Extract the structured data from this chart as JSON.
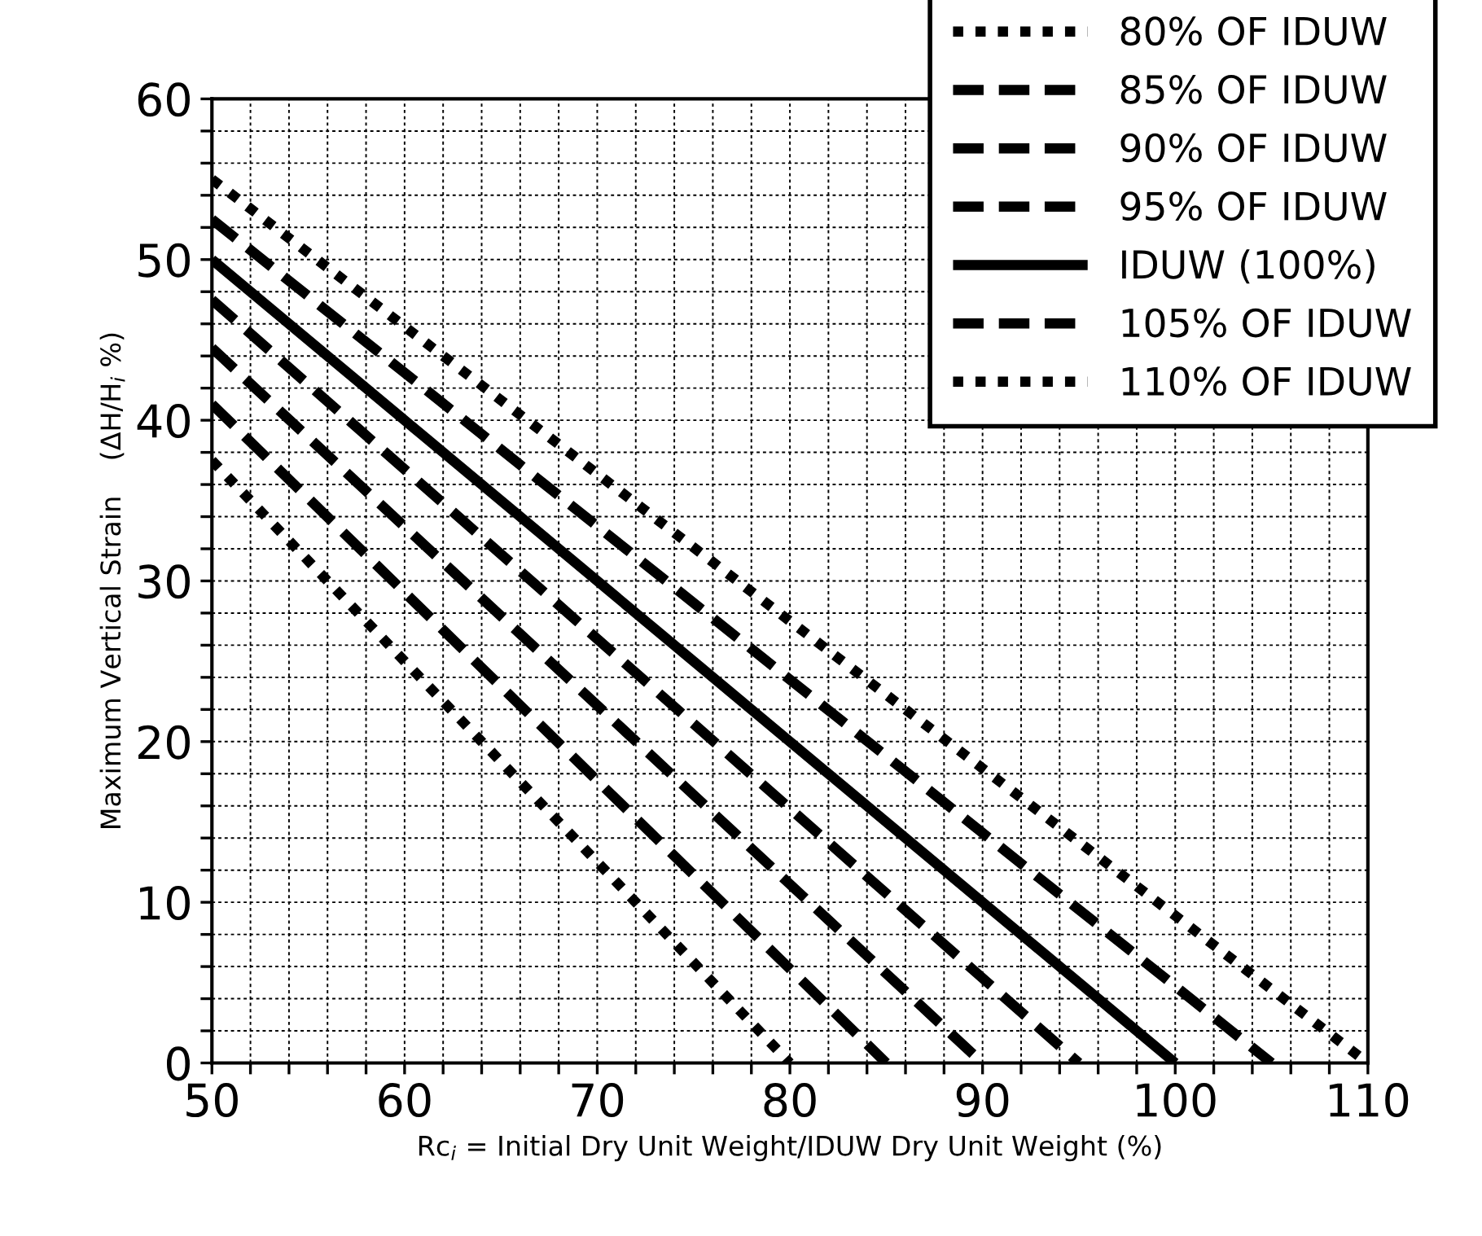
{
  "chart_data": {
    "type": "line",
    "xlabel": "Rc$_{i}$ = Initial Dry Unit Weight/IDUW Dry Unit Weight (%)",
    "ylabel": "Maximum Vertical Strain    (ΔH/H$_{i}$ %)",
    "xlim": [
      50,
      110
    ],
    "ylim": [
      0,
      60
    ],
    "xticks": [
      50,
      {
        "value": 52,
        "label": null
      },
      {
        "value": 54,
        "label": null
      },
      {
        "value": 56,
        "label": null
      },
      {
        "value": 58,
        "label": null
      },
      60,
      {
        "value": 62,
        "label": null
      },
      {
        "value": 64,
        "label": null
      },
      {
        "value": 66,
        "label": null
      },
      {
        "value": 68,
        "label": null
      },
      70,
      {
        "value": 72,
        "label": null
      },
      {
        "value": 74,
        "label": null
      },
      {
        "value": 76,
        "label": null
      },
      {
        "value": 78,
        "label": null
      },
      80,
      {
        "value": 82,
        "label": null
      },
      {
        "value": 84,
        "label": null
      },
      {
        "value": 86,
        "label": null
      },
      {
        "value": 88,
        "label": null
      },
      90,
      {
        "value": 92,
        "label": null
      },
      {
        "value": 94,
        "label": null
      },
      {
        "value": 96,
        "label": null
      },
      {
        "value": 98,
        "label": null
      },
      100,
      {
        "value": 102,
        "label": null
      },
      {
        "value": 104,
        "label": null
      },
      {
        "value": 106,
        "label": null
      },
      {
        "value": 108,
        "label": null
      },
      110
    ],
    "yticks": [
      0,
      {
        "value": 2,
        "label": null
      },
      {
        "value": 4,
        "label": null
      },
      {
        "value": 6,
        "label": null
      },
      {
        "value": 8,
        "label": null
      },
      10,
      {
        "value": 12,
        "label": null
      },
      {
        "value": 14,
        "label": null
      },
      {
        "value": 16,
        "label": null
      },
      {
        "value": 18,
        "label": null
      },
      20,
      {
        "value": 22,
        "label": null
      },
      {
        "value": 24,
        "label": null
      },
      {
        "value": 26,
        "label": null
      },
      {
        "value": 28,
        "label": null
      },
      30,
      {
        "value": 32,
        "label": null
      },
      {
        "value": 34,
        "label": null
      },
      {
        "value": 36,
        "label": null
      },
      {
        "value": 38,
        "label": null
      },
      40,
      {
        "value": 42,
        "label": null
      },
      {
        "value": 44,
        "label": null
      },
      {
        "value": 46,
        "label": null
      },
      {
        "value": 48,
        "label": null
      },
      50,
      {
        "value": 52,
        "label": null
      },
      {
        "value": 54,
        "label": null
      },
      {
        "value": 56,
        "label": null
      },
      {
        "value": 58,
        "label": null
      },
      60
    ],
    "grid": true,
    "legend": "top right",
    "marker": "none",
    "series": [
      {
        "name": "80% OF IDUW",
        "color": "#000000",
        "line_style": "dotted",
        "x": [
          50,
          80
        ],
        "values": [
          37.5,
          0
        ]
      },
      {
        "name": "85% OF IDUW",
        "color": "#000000",
        "line_style": "dashed",
        "x": [
          50,
          85
        ],
        "values": [
          41,
          0
        ]
      },
      {
        "name": "90% OF IDUW",
        "color": "#000000",
        "line_style": "dashed",
        "x": [
          50,
          90
        ],
        "values": [
          44.5,
          0
        ]
      },
      {
        "name": "95% OF IDUW",
        "color": "#000000",
        "line_style": "dashed",
        "x": [
          50,
          95
        ],
        "values": [
          47.5,
          0
        ]
      },
      {
        "name": "IDUW (100%)",
        "color": "#000000",
        "line_style": "solid",
        "x": [
          50,
          100
        ],
        "values": [
          50,
          0
        ]
      },
      {
        "name": "105% OF IDUW",
        "color": "#000000",
        "line_style": "dashed",
        "x": [
          50,
          105
        ],
        "values": [
          52.5,
          0
        ]
      },
      {
        "name": "110% OF IDUW",
        "color": "#000000",
        "line_style": "dotted",
        "x": [
          50,
          110
        ],
        "values": [
          55,
          0
        ]
      }
    ]
  }
}
